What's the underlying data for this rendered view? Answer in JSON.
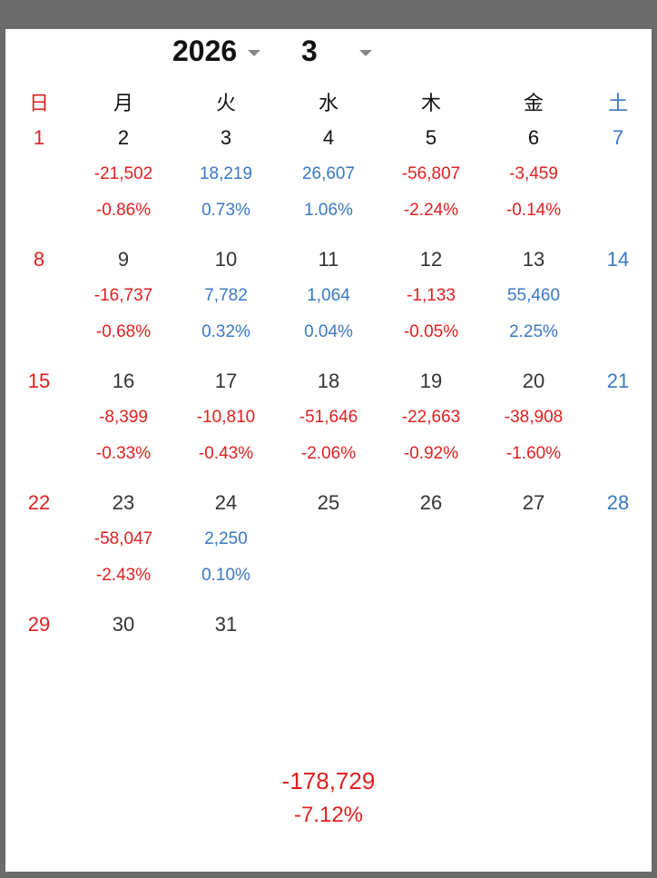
{
  "header": {
    "year": "2026",
    "month": "3"
  },
  "weekdays": [
    "日",
    "月",
    "火",
    "水",
    "木",
    "金",
    "土"
  ],
  "weeks": [
    {
      "days": [
        "1",
        "2",
        "3",
        "4",
        "5",
        "6",
        "7"
      ],
      "values": [
        "",
        "-21,502",
        "18,219",
        "26,607",
        "-56,807",
        "-3,459",
        ""
      ],
      "percents": [
        "",
        "-0.86%",
        "0.73%",
        "1.06%",
        "-2.24%",
        "-0.14%",
        ""
      ]
    },
    {
      "days": [
        "8",
        "9",
        "10",
        "11",
        "12",
        "13",
        "14"
      ],
      "values": [
        "",
        "-16,737",
        "7,782",
        "1,064",
        "-1,133",
        "55,460",
        ""
      ],
      "percents": [
        "",
        "-0.68%",
        "0.32%",
        "0.04%",
        "-0.05%",
        "2.25%",
        ""
      ]
    },
    {
      "days": [
        "15",
        "16",
        "17",
        "18",
        "19",
        "20",
        "21"
      ],
      "values": [
        "",
        "-8,399",
        "-10,810",
        "-51,646",
        "-22,663",
        "-38,908",
        ""
      ],
      "percents": [
        "",
        "-0.33%",
        "-0.43%",
        "-2.06%",
        "-0.92%",
        "-1.60%",
        ""
      ]
    },
    {
      "days": [
        "22",
        "23",
        "24",
        "25",
        "26",
        "27",
        "28"
      ],
      "values": [
        "",
        "-58,047",
        "2,250",
        "",
        "",
        "",
        ""
      ],
      "percents": [
        "",
        "-2.43%",
        "0.10%",
        "",
        "",
        "",
        ""
      ]
    },
    {
      "days": [
        "29",
        "30",
        "31",
        "",
        "",
        "",
        ""
      ],
      "values": [
        "",
        "",
        "",
        "",
        "",
        "",
        ""
      ],
      "percents": [
        "",
        "",
        "",
        "",
        "",
        "",
        ""
      ]
    }
  ],
  "summary": {
    "total": "-178,729",
    "percent": "-7.12%"
  },
  "colors": {
    "negative": "#e02020",
    "positive": "#3a78c4",
    "sunday": "#e02020",
    "saturday": "#3a78c4"
  }
}
